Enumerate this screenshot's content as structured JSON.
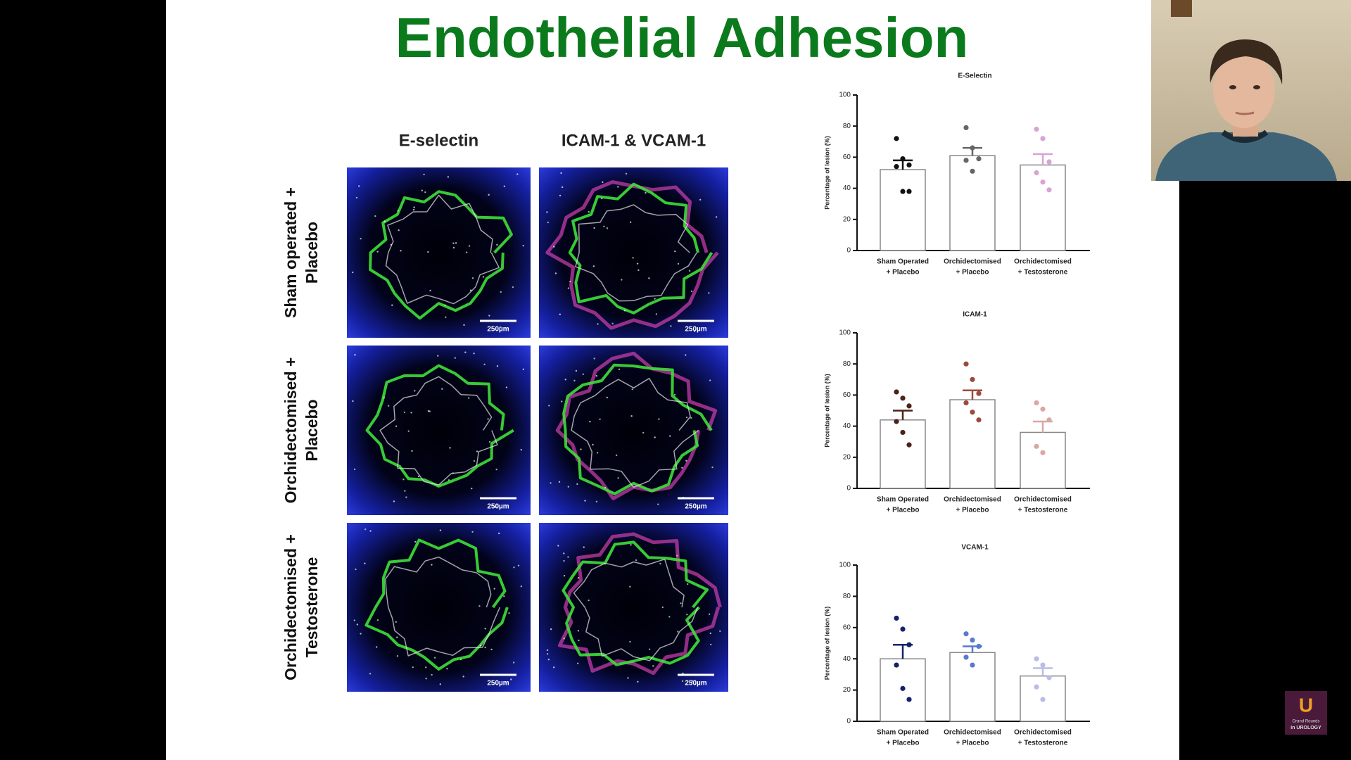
{
  "slide": {
    "title": "Endothelial Adhesion",
    "image_grid": {
      "columns": [
        "E-selectin",
        "ICAM-1 & VCAM-1"
      ],
      "rows": [
        [
          "Sham operated +",
          "Placebo"
        ],
        [
          "Orchidectomised +",
          "Placebo"
        ],
        [
          "Orchidectomised +",
          "Testosterone"
        ]
      ],
      "scale_label": "250µm"
    },
    "charts": [
      {
        "title": "E-Selectin",
        "y_label": "Percentage of lesion  (%)",
        "ylim": [
          0,
          100
        ],
        "yticks": [
          0,
          20,
          40,
          60,
          80,
          100
        ],
        "categories": [
          [
            "Sham Operated",
            "+ Placebo"
          ],
          [
            "Orchidectomised",
            "+ Placebo"
          ],
          [
            "Orchidectomised",
            "+ Testosterone"
          ]
        ],
        "values": [
          52,
          61,
          55
        ],
        "errors": [
          6,
          5,
          7
        ],
        "points": [
          [
            72,
            59,
            55,
            54,
            38,
            38
          ],
          [
            79,
            66,
            59,
            58,
            51
          ],
          [
            78,
            72,
            57,
            50,
            44,
            39
          ]
        ],
        "colors": [
          "#111111",
          "#666666",
          "#d9a3d4"
        ]
      },
      {
        "title": "ICAM-1",
        "y_label": "Percentage of lesion  (%)",
        "ylim": [
          0,
          100
        ],
        "yticks": [
          0,
          20,
          40,
          60,
          80,
          100
        ],
        "categories": [
          [
            "Sham Operated",
            "+ Placebo"
          ],
          [
            "Orchidectomised",
            "+ Placebo"
          ],
          [
            "Orchidectomised",
            "+ Testosterone"
          ]
        ],
        "values": [
          44,
          57,
          36
        ],
        "errors": [
          6,
          6,
          7
        ],
        "points": [
          [
            62,
            58,
            53,
            43,
            36,
            28
          ],
          [
            80,
            70,
            61,
            55,
            49,
            44
          ],
          [
            55,
            51,
            44,
            27,
            23
          ]
        ],
        "colors": [
          "#4a2418",
          "#9c4a3c",
          "#dba6a6"
        ]
      },
      {
        "title": "VCAM-1",
        "y_label": "Percentage of lesion  (%)",
        "ylim": [
          0,
          100
        ],
        "yticks": [
          0,
          20,
          40,
          60,
          80,
          100
        ],
        "categories": [
          [
            "Sham Operated",
            "+ Placebo"
          ],
          [
            "Orchidectomised",
            "+ Placebo"
          ],
          [
            "Orchidectomised",
            "+ Testosterone"
          ]
        ],
        "values": [
          40,
          44,
          29
        ],
        "errors": [
          9,
          4,
          5
        ],
        "points": [
          [
            66,
            59,
            49,
            36,
            21,
            14
          ],
          [
            56,
            52,
            48,
            41,
            36
          ],
          [
            40,
            36,
            28,
            22,
            14
          ]
        ],
        "colors": [
          "#13236b",
          "#5a79cf",
          "#b9bde6"
        ]
      }
    ],
    "logo": {
      "letter": "U",
      "line1": "Grand Rounds",
      "line2": "in UROLOGY"
    }
  }
}
